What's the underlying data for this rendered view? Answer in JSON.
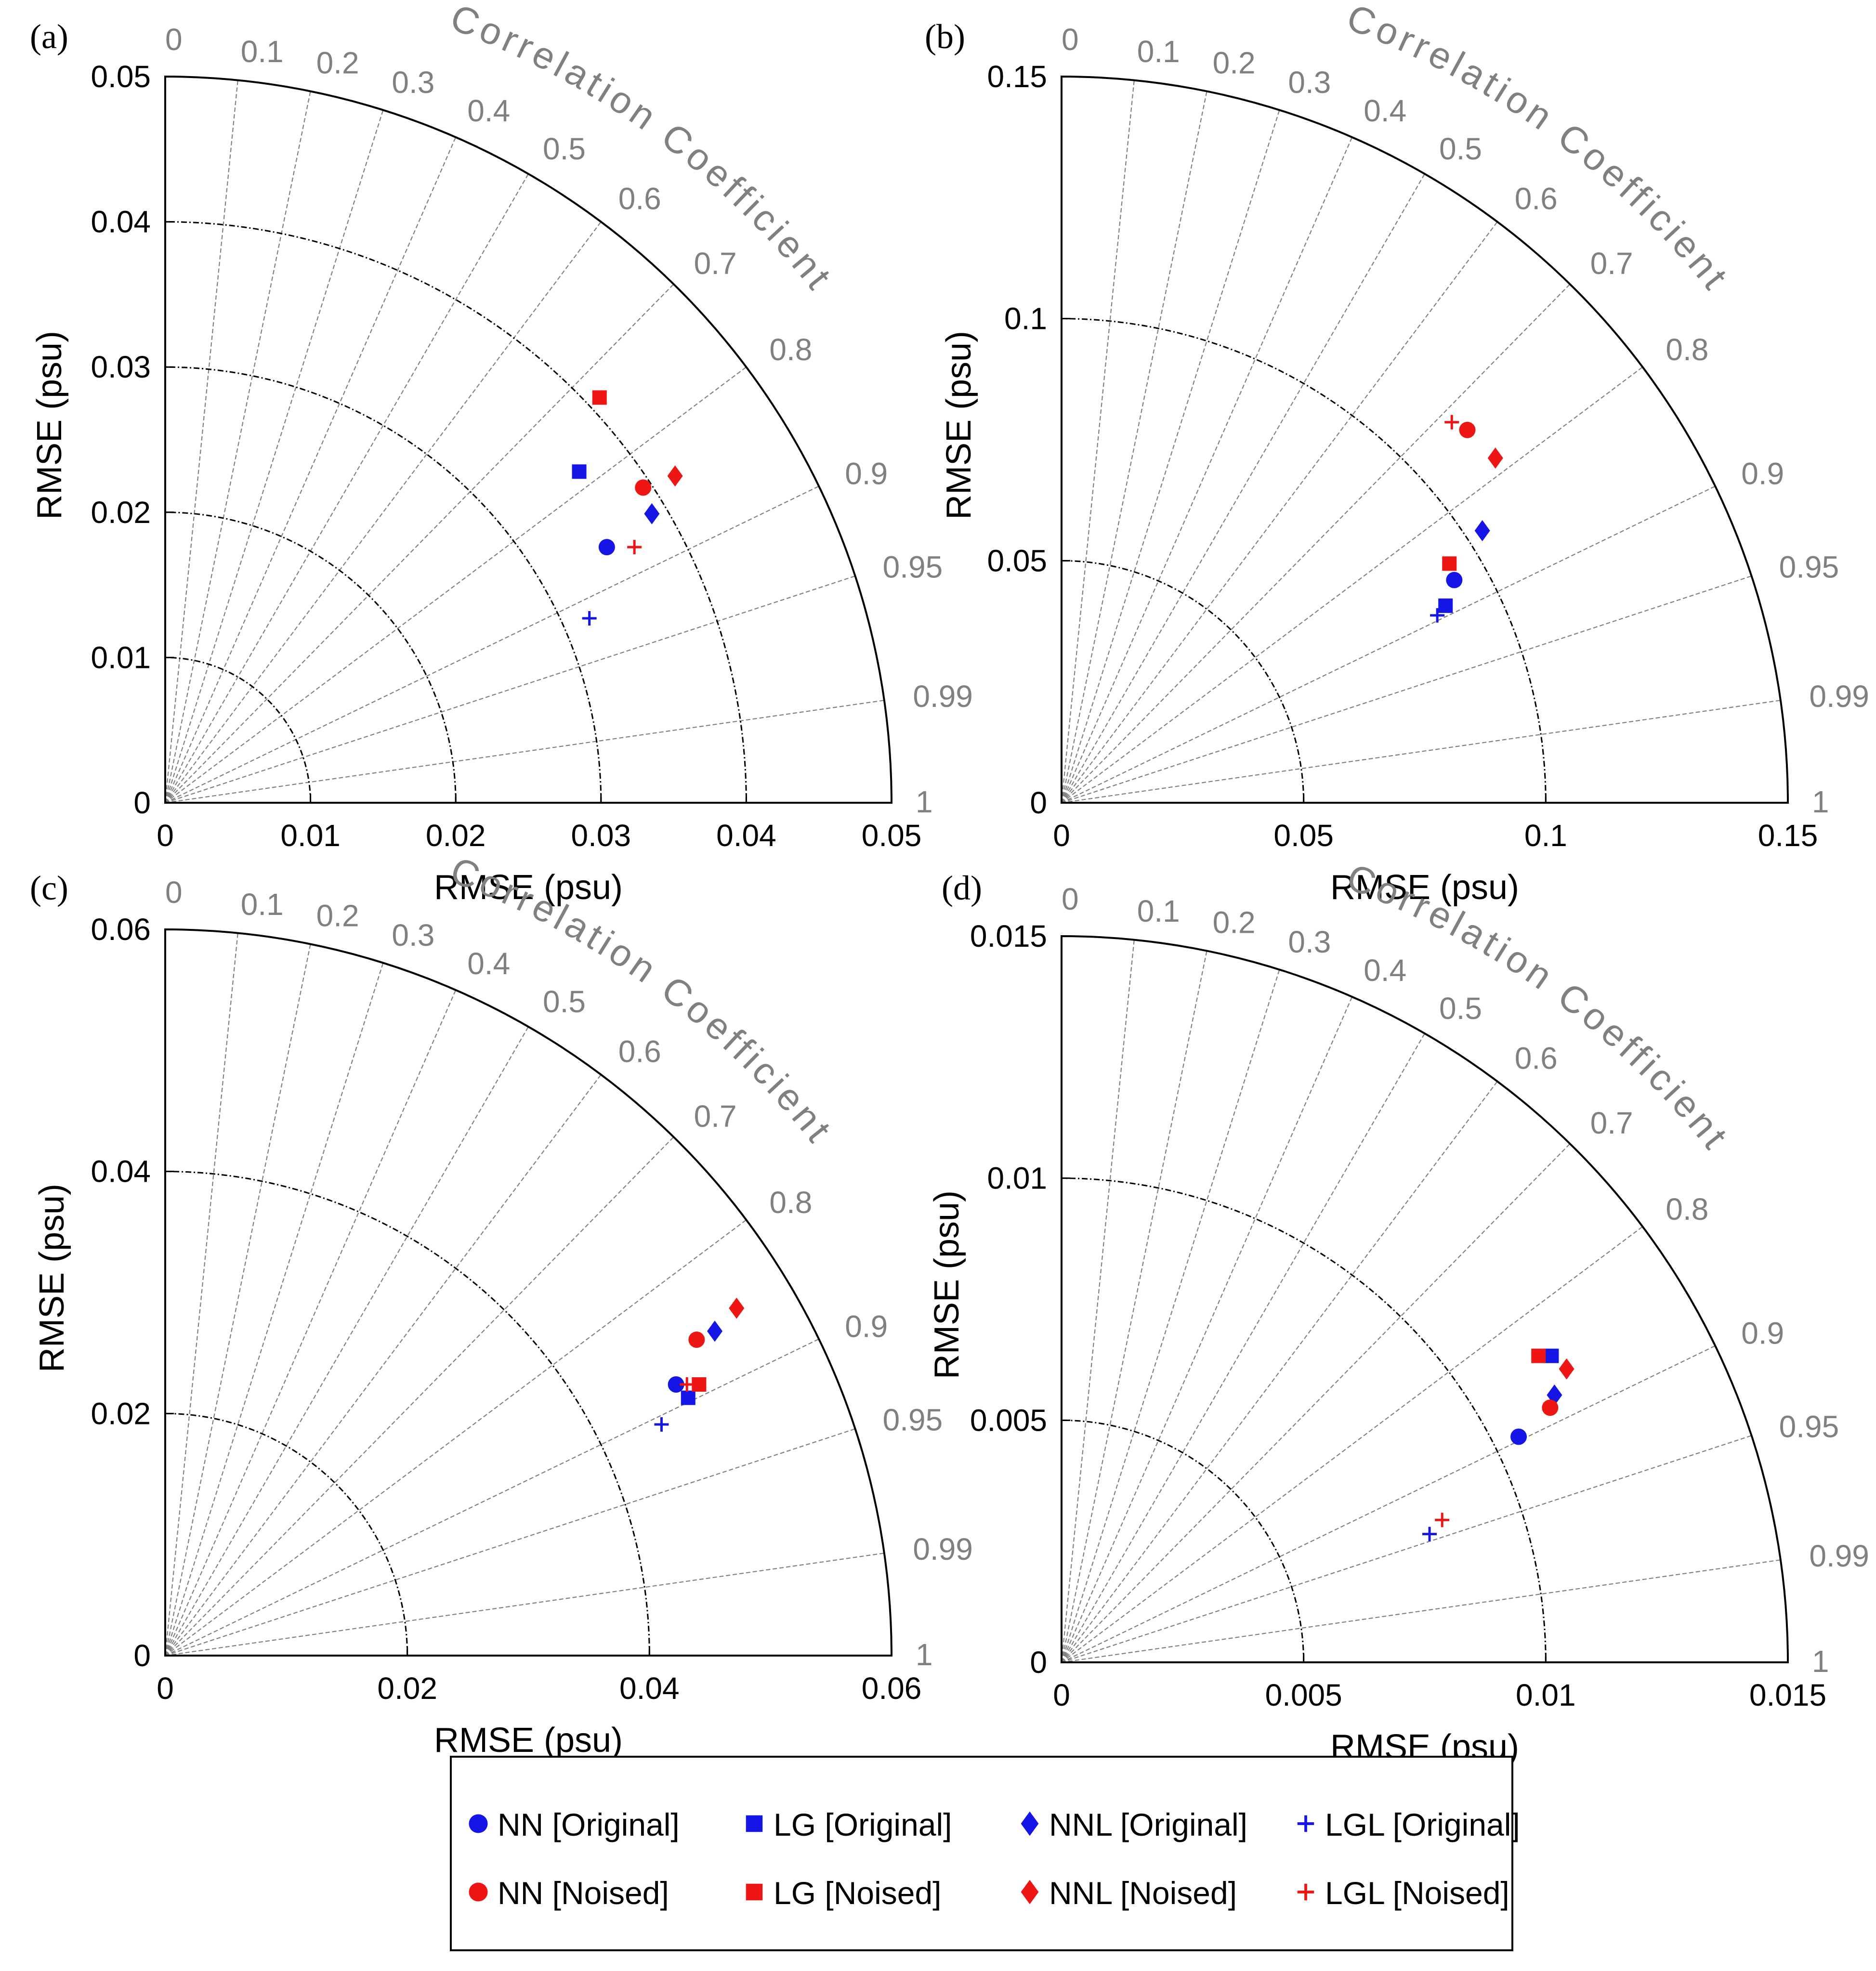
{
  "figure": {
    "colors": {
      "original": "#1515e6",
      "noised": "#ee1515",
      "axis": "#000000",
      "corr_grid": "#808080",
      "rms_grid": "#000000"
    }
  },
  "legend": {
    "items": [
      {
        "label": "NN [Original]",
        "marker": "circle",
        "color": "#1515e6"
      },
      {
        "label": "LG [Original]",
        "marker": "square",
        "color": "#1515e6"
      },
      {
        "label": "NNL [Original]",
        "marker": "diamond",
        "color": "#1515e6"
      },
      {
        "label": "LGL [Original]",
        "marker": "plus",
        "color": "#1515e6"
      },
      {
        "label": "NN [Noised]",
        "marker": "circle",
        "color": "#ee1515"
      },
      {
        "label": "LG [Noised]",
        "marker": "square",
        "color": "#ee1515"
      },
      {
        "label": "NNL [Noised]",
        "marker": "diamond",
        "color": "#ee1515"
      },
      {
        "label": "LGL [Noised]",
        "marker": "plus",
        "color": "#ee1515"
      }
    ]
  },
  "chart_data": [
    {
      "type": "scatter",
      "subtype": "taylor-diagram",
      "panel": "(a)",
      "xlabel": "RMSE (psu)",
      "ylabel": "RMSE (psu)",
      "arc_label": "Correlation Coefficient",
      "rmax": 0.05,
      "ticks": [
        0,
        0.01,
        0.02,
        0.03,
        0.04,
        0.05
      ],
      "tick_labels": [
        "0",
        "0.01",
        "0.02",
        "0.03",
        "0.04",
        "0.05"
      ],
      "rms_circles": [
        0.01,
        0.02,
        0.03,
        0.04
      ],
      "correlations": [
        0,
        0.1,
        0.2,
        0.3,
        0.4,
        0.5,
        0.6,
        0.7,
        0.8,
        0.9,
        0.95,
        0.99,
        1
      ],
      "correlation_labels": [
        "0",
        "0.1",
        "0.2",
        "0.3",
        "0.4",
        "0.5",
        "0.6",
        "0.7",
        "0.8",
        "0.9",
        "0.95",
        "0.99",
        "1"
      ],
      "points": [
        {
          "series": "NN [Original]",
          "x": 0.0304,
          "y": 0.0176
        },
        {
          "series": "LG [Original]",
          "x": 0.0285,
          "y": 0.0228
        },
        {
          "series": "NNL [Original]",
          "x": 0.0335,
          "y": 0.0199
        },
        {
          "series": "LGL [Original]",
          "x": 0.0292,
          "y": 0.0127
        },
        {
          "series": "NN [Noised]",
          "x": 0.0329,
          "y": 0.0217
        },
        {
          "series": "LG [Noised]",
          "x": 0.0299,
          "y": 0.0279
        },
        {
          "series": "NNL [Noised]",
          "x": 0.0351,
          "y": 0.0225
        },
        {
          "series": "LGL [Noised]",
          "x": 0.0323,
          "y": 0.0176
        }
      ]
    },
    {
      "type": "scatter",
      "subtype": "taylor-diagram",
      "panel": "(b)",
      "xlabel": "RMSE (psu)",
      "ylabel": "RMSE (psu)",
      "arc_label": "Correlation Coefficient",
      "rmax": 0.15,
      "ticks": [
        0,
        0.05,
        0.1,
        0.15
      ],
      "tick_labels": [
        "0",
        "0.05",
        "0.1",
        "0.15"
      ],
      "rms_circles": [
        0.05,
        0.1
      ],
      "correlations": [
        0,
        0.1,
        0.2,
        0.3,
        0.4,
        0.5,
        0.6,
        0.7,
        0.8,
        0.9,
        0.95,
        0.99,
        1
      ],
      "correlation_labels": [
        "0",
        "0.1",
        "0.2",
        "0.3",
        "0.4",
        "0.5",
        "0.6",
        "0.7",
        "0.8",
        "0.9",
        "0.95",
        "0.99",
        "1"
      ],
      "points": [
        {
          "series": "NN [Original]",
          "x": 0.0811,
          "y": 0.046
        },
        {
          "series": "LG [Original]",
          "x": 0.0793,
          "y": 0.0407
        },
        {
          "series": "NNL [Original]",
          "x": 0.0869,
          "y": 0.0562
        },
        {
          "series": "LGL [Original]",
          "x": 0.0776,
          "y": 0.0387
        },
        {
          "series": "NN [Noised]",
          "x": 0.0838,
          "y": 0.077
        },
        {
          "series": "LG [Noised]",
          "x": 0.0801,
          "y": 0.0494
        },
        {
          "series": "NNL [Noised]",
          "x": 0.0896,
          "y": 0.0712
        },
        {
          "series": "LGL [Noised]",
          "x": 0.0806,
          "y": 0.0786
        }
      ]
    },
    {
      "type": "scatter",
      "subtype": "taylor-diagram",
      "panel": "(c)",
      "xlabel": "RMSE (psu)",
      "ylabel": "RMSE (psu)",
      "arc_label": "Correlation Coefficient",
      "rmax": 0.06,
      "ticks": [
        0,
        0.02,
        0.04,
        0.06
      ],
      "tick_labels": [
        "0",
        "0.02",
        "0.04",
        "0.06"
      ],
      "rms_circles": [
        0.02,
        0.04
      ],
      "correlations": [
        0,
        0.1,
        0.2,
        0.3,
        0.4,
        0.5,
        0.6,
        0.7,
        0.8,
        0.9,
        0.95,
        0.99,
        1
      ],
      "correlation_labels": [
        "0",
        "0.1",
        "0.2",
        "0.3",
        "0.4",
        "0.5",
        "0.6",
        "0.7",
        "0.8",
        "0.9",
        "0.95",
        "0.99",
        "1"
      ],
      "points": [
        {
          "series": "NN [Original]",
          "x": 0.0422,
          "y": 0.0224
        },
        {
          "series": "LG [Original]",
          "x": 0.0432,
          "y": 0.0213
        },
        {
          "series": "NNL [Original]",
          "x": 0.0454,
          "y": 0.0268
        },
        {
          "series": "LGL [Original]",
          "x": 0.041,
          "y": 0.0191
        },
        {
          "series": "NN [Noised]",
          "x": 0.0439,
          "y": 0.0261
        },
        {
          "series": "LG [Noised]",
          "x": 0.0441,
          "y": 0.0224
        },
        {
          "series": "NNL [Noised]",
          "x": 0.0472,
          "y": 0.0287
        },
        {
          "series": "LGL [Noised]",
          "x": 0.0431,
          "y": 0.0224
        }
      ]
    },
    {
      "type": "scatter",
      "subtype": "taylor-diagram",
      "panel": "(d)",
      "xlabel": "RMSE (psu)",
      "ylabel": "RMSE (psu)",
      "arc_label": "Correlation Coefficient",
      "rmax": 0.015,
      "ticks": [
        0,
        0.005,
        0.01,
        0.015
      ],
      "tick_labels": [
        "0",
        "0.005",
        "0.01",
        "0.015"
      ],
      "rms_circles": [
        0.005,
        0.01
      ],
      "correlations": [
        0,
        0.1,
        0.2,
        0.3,
        0.4,
        0.5,
        0.6,
        0.7,
        0.8,
        0.9,
        0.95,
        0.99,
        1
      ],
      "correlation_labels": [
        "0",
        "0.1",
        "0.2",
        "0.3",
        "0.4",
        "0.5",
        "0.6",
        "0.7",
        "0.8",
        "0.9",
        "0.95",
        "0.99",
        "1"
      ],
      "points": [
        {
          "series": "NN [Original]",
          "x": 0.00944,
          "y": 0.00466
        },
        {
          "series": "LG [Original]",
          "x": 0.01012,
          "y": 0.00633
        },
        {
          "series": "NNL [Original]",
          "x": 0.01018,
          "y": 0.00552
        },
        {
          "series": "LGL [Original]",
          "x": 0.0076,
          "y": 0.00265
        },
        {
          "series": "NN [Noised]",
          "x": 0.01009,
          "y": 0.00526
        },
        {
          "series": "LG [Noised]",
          "x": 0.00985,
          "y": 0.00633
        },
        {
          "series": "NNL [Noised]",
          "x": 0.01043,
          "y": 0.00606
        },
        {
          "series": "LGL [Noised]",
          "x": 0.00786,
          "y": 0.00294
        }
      ]
    }
  ]
}
